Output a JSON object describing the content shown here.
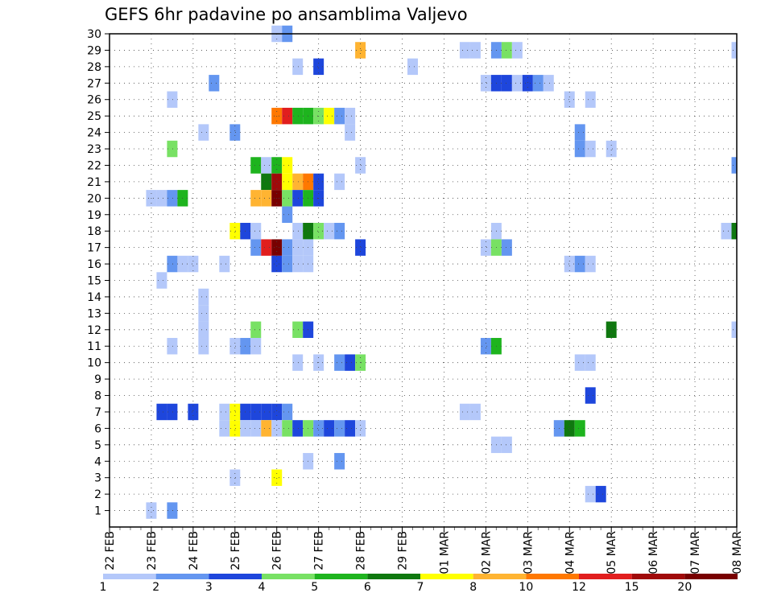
{
  "chart_data": {
    "type": "heatmap",
    "title": "GEFS 6hr padavine po ansamblima Valjevo",
    "xlabel": "",
    "ylabel": "",
    "x_ticks": [
      "22 FEB",
      "23 FEB",
      "24 FEB",
      "25 FEB",
      "26 FEB",
      "27 FEB",
      "28 FEB",
      "29 FEB",
      "01 MAR",
      "02 MAR",
      "03 MAR",
      "04 MAR",
      "05 MAR",
      "06 MAR",
      "07 MAR",
      "08 MAR"
    ],
    "y_ticks": [
      1,
      2,
      3,
      4,
      5,
      6,
      7,
      8,
      9,
      10,
      11,
      12,
      13,
      14,
      15,
      16,
      17,
      18,
      19,
      20,
      21,
      22,
      23,
      24,
      25,
      26,
      27,
      28,
      29,
      30
    ],
    "ylim": [
      0,
      30
    ],
    "time_step_hours": 6,
    "grid": true,
    "colorbar": {
      "boundaries": [
        "1",
        "2",
        "3",
        "4",
        "5",
        "6",
        "7",
        "8",
        "10",
        "12",
        "15",
        "20"
      ],
      "colors": [
        "#b4c8fa",
        "#6496f0",
        "#1e46dc",
        "#78e164",
        "#1eb41e",
        "#0f780f",
        "#ffff00",
        "#ffb432",
        "#ff7800",
        "#e11e1e",
        "#a00a0a",
        "#780000"
      ]
    },
    "cells": [
      [
        30,
        16,
        0
      ],
      [
        30,
        17,
        1
      ],
      [
        29,
        24,
        7
      ],
      [
        29,
        34,
        0
      ],
      [
        29,
        35,
        0
      ],
      [
        29,
        37,
        1
      ],
      [
        29,
        38,
        3
      ],
      [
        29,
        39,
        0
      ],
      [
        29,
        60,
        0
      ],
      [
        28,
        18,
        0
      ],
      [
        28,
        20,
        2
      ],
      [
        28,
        29,
        0
      ],
      [
        27,
        10,
        1
      ],
      [
        27,
        36,
        0
      ],
      [
        27,
        37,
        2
      ],
      [
        27,
        38,
        2
      ],
      [
        27,
        39,
        0
      ],
      [
        27,
        40,
        2
      ],
      [
        27,
        41,
        1
      ],
      [
        27,
        42,
        0
      ],
      [
        26,
        6,
        0
      ],
      [
        26,
        44,
        0
      ],
      [
        26,
        46,
        0
      ],
      [
        25,
        16,
        8
      ],
      [
        25,
        17,
        9
      ],
      [
        25,
        18,
        4
      ],
      [
        25,
        19,
        4
      ],
      [
        25,
        20,
        3
      ],
      [
        25,
        21,
        6
      ],
      [
        25,
        22,
        1
      ],
      [
        25,
        23,
        0
      ],
      [
        24,
        9,
        0
      ],
      [
        24,
        12,
        1
      ],
      [
        24,
        23,
        0
      ],
      [
        24,
        45,
        1
      ],
      [
        23,
        6,
        3
      ],
      [
        23,
        45,
        1
      ],
      [
        23,
        46,
        0
      ],
      [
        23,
        48,
        0
      ],
      [
        22,
        14,
        4
      ],
      [
        22,
        15,
        0
      ],
      [
        22,
        16,
        4
      ],
      [
        22,
        17,
        6
      ],
      [
        22,
        24,
        0
      ],
      [
        22,
        60,
        1
      ],
      [
        21,
        15,
        5
      ],
      [
        21,
        16,
        10
      ],
      [
        21,
        17,
        6
      ],
      [
        21,
        18,
        7
      ],
      [
        21,
        19,
        8
      ],
      [
        21,
        20,
        2
      ],
      [
        21,
        22,
        0
      ],
      [
        20,
        4,
        0
      ],
      [
        20,
        5,
        0
      ],
      [
        20,
        6,
        1
      ],
      [
        20,
        7,
        4
      ],
      [
        20,
        14,
        7
      ],
      [
        20,
        15,
        7
      ],
      [
        20,
        16,
        11
      ],
      [
        20,
        17,
        3
      ],
      [
        20,
        18,
        2
      ],
      [
        20,
        19,
        4
      ],
      [
        20,
        20,
        2
      ],
      [
        19,
        17,
        1
      ],
      [
        18,
        12,
        6
      ],
      [
        18,
        13,
        2
      ],
      [
        18,
        14,
        0
      ],
      [
        18,
        18,
        0
      ],
      [
        18,
        19,
        5
      ],
      [
        18,
        20,
        3
      ],
      [
        18,
        21,
        0
      ],
      [
        18,
        22,
        1
      ],
      [
        18,
        37,
        0
      ],
      [
        18,
        59,
        0
      ],
      [
        18,
        60,
        5
      ],
      [
        17,
        14,
        1
      ],
      [
        17,
        15,
        9
      ],
      [
        17,
        16,
        11
      ],
      [
        17,
        17,
        1
      ],
      [
        17,
        18,
        0
      ],
      [
        17,
        19,
        0
      ],
      [
        17,
        24,
        2
      ],
      [
        17,
        36,
        0
      ],
      [
        17,
        37,
        3
      ],
      [
        17,
        38,
        1
      ],
      [
        16,
        6,
        1
      ],
      [
        16,
        7,
        0
      ],
      [
        16,
        8,
        0
      ],
      [
        16,
        11,
        0
      ],
      [
        16,
        16,
        2
      ],
      [
        16,
        17,
        1
      ],
      [
        16,
        18,
        0
      ],
      [
        16,
        19,
        0
      ],
      [
        16,
        44,
        0
      ],
      [
        16,
        45,
        1
      ],
      [
        16,
        46,
        0
      ],
      [
        15,
        5,
        0
      ],
      [
        14,
        9,
        0
      ],
      [
        13,
        9,
        0
      ],
      [
        12,
        9,
        0
      ],
      [
        12,
        14,
        3
      ],
      [
        12,
        18,
        3
      ],
      [
        12,
        19,
        2
      ],
      [
        12,
        48,
        5
      ],
      [
        12,
        60,
        0
      ],
      [
        11,
        6,
        0
      ],
      [
        11,
        9,
        0
      ],
      [
        11,
        12,
        0
      ],
      [
        11,
        13,
        1
      ],
      [
        11,
        14,
        0
      ],
      [
        11,
        36,
        1
      ],
      [
        11,
        37,
        4
      ],
      [
        10,
        18,
        0
      ],
      [
        10,
        20,
        0
      ],
      [
        10,
        22,
        1
      ],
      [
        10,
        23,
        2
      ],
      [
        10,
        24,
        3
      ],
      [
        10,
        45,
        0
      ],
      [
        10,
        46,
        0
      ],
      [
        8,
        46,
        2
      ],
      [
        7,
        5,
        2
      ],
      [
        7,
        6,
        2
      ],
      [
        7,
        8,
        2
      ],
      [
        7,
        11,
        0
      ],
      [
        7,
        12,
        6
      ],
      [
        7,
        13,
        2
      ],
      [
        7,
        14,
        2
      ],
      [
        7,
        15,
        2
      ],
      [
        7,
        16,
        2
      ],
      [
        7,
        17,
        1
      ],
      [
        7,
        34,
        0
      ],
      [
        7,
        35,
        0
      ],
      [
        6,
        11,
        0
      ],
      [
        6,
        12,
        6
      ],
      [
        6,
        13,
        0
      ],
      [
        6,
        14,
        0
      ],
      [
        6,
        15,
        7
      ],
      [
        6,
        16,
        0
      ],
      [
        6,
        17,
        3
      ],
      [
        6,
        18,
        2
      ],
      [
        6,
        19,
        3
      ],
      [
        6,
        20,
        1
      ],
      [
        6,
        21,
        2
      ],
      [
        6,
        22,
        1
      ],
      [
        6,
        23,
        2
      ],
      [
        6,
        24,
        0
      ],
      [
        6,
        43,
        1
      ],
      [
        6,
        44,
        5
      ],
      [
        6,
        45,
        4
      ],
      [
        5,
        37,
        0
      ],
      [
        5,
        38,
        0
      ],
      [
        4,
        19,
        0
      ],
      [
        4,
        22,
        1
      ],
      [
        3,
        12,
        0
      ],
      [
        3,
        16,
        6
      ],
      [
        2,
        46,
        0
      ],
      [
        2,
        47,
        2
      ],
      [
        1,
        4,
        0
      ],
      [
        1,
        6,
        1
      ]
    ]
  }
}
